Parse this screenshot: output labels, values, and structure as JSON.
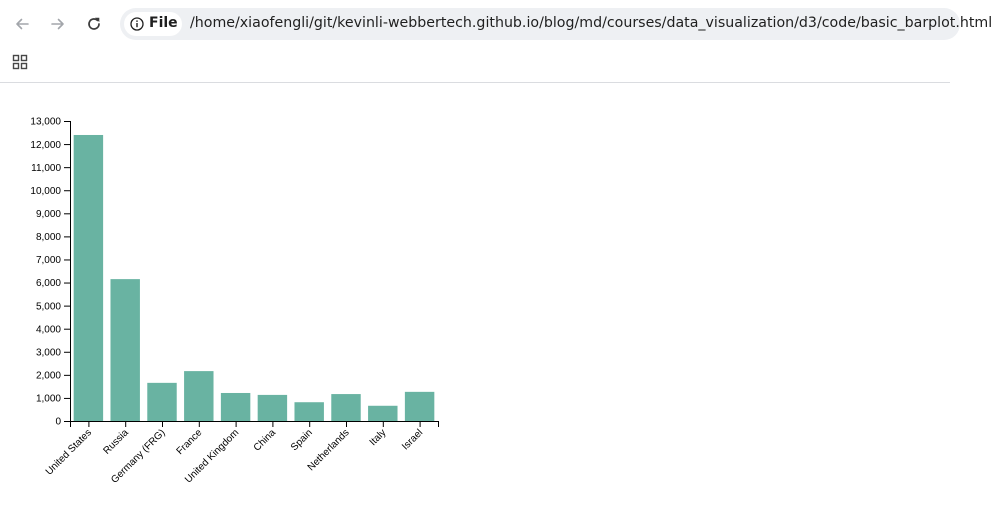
{
  "browser": {
    "chip_label": "File",
    "url": "/home/xiaofengli/git/kevinli-webbertech.github.io/blog/md/courses/data_visualization/d3/code/basic_barplot.html",
    "icons": {
      "back": "arrow-left-icon",
      "forward": "arrow-right-icon",
      "reload": "reload-icon",
      "info": "info-icon",
      "apps": "apps-grid-icon"
    }
  },
  "colors": {
    "bar": "#69b3a2",
    "axis": "#000000"
  },
  "chart_data": {
    "type": "bar",
    "title": "",
    "xlabel": "",
    "ylabel": "",
    "categories": [
      "United States",
      "Russia",
      "Germany (FRG)",
      "France",
      "United Kingdom",
      "China",
      "Spain",
      "Netherlands",
      "Italy",
      "Israel"
    ],
    "values": [
      12394,
      6148,
      1653,
      2162,
      1214,
      1131,
      814,
      1167,
      660,
      1263
    ],
    "ylim": [
      0,
      13000
    ],
    "yticks": [
      0,
      1000,
      2000,
      3000,
      4000,
      5000,
      6000,
      7000,
      8000,
      9000,
      10000,
      11000,
      12000,
      13000
    ],
    "ytick_labels": [
      "0",
      "1,000",
      "2,000",
      "3,000",
      "4,000",
      "5,000",
      "6,000",
      "7,000",
      "8,000",
      "9,000",
      "10,000",
      "11,000",
      "12,000",
      "13,000"
    ],
    "grid": false,
    "legend": "none"
  }
}
